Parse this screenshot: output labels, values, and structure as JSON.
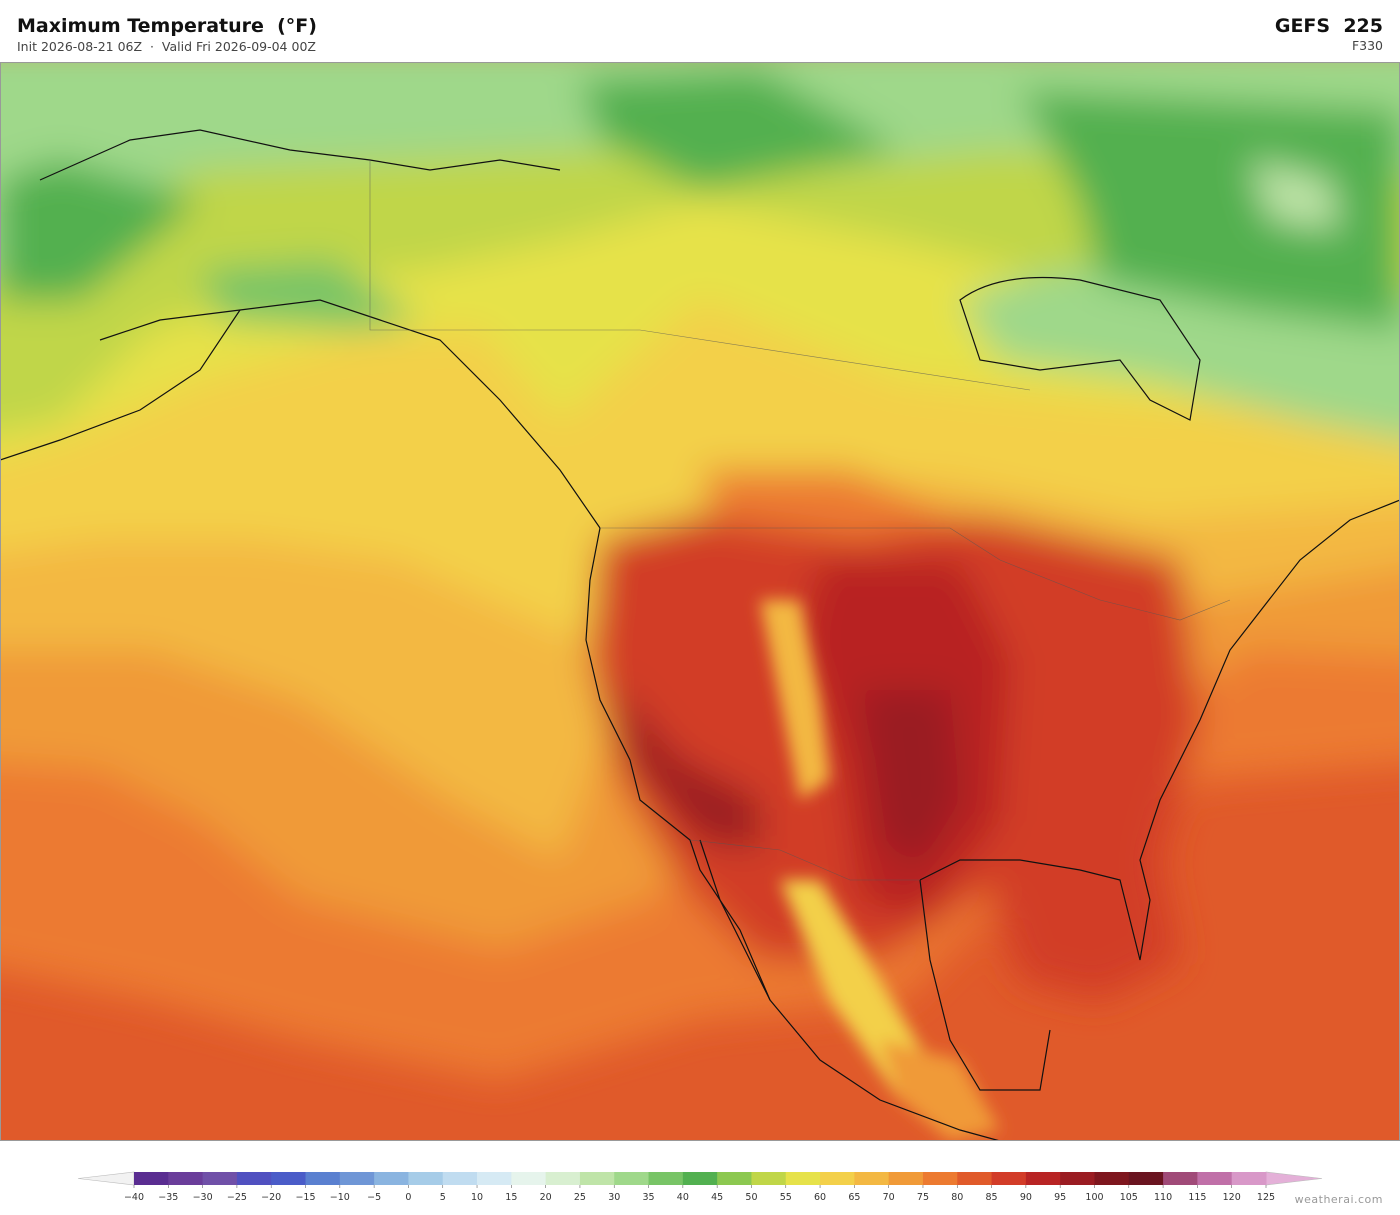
{
  "header": {
    "title": "Maximum Temperature  (°F)",
    "subtitle": "Init 2026-08-21 06Z  ·  Valid Fri 2026-09-04 00Z",
    "model": "GEFS  225",
    "forecast_hour": "F330"
  },
  "colorbar": {
    "min": -40,
    "max": 125,
    "ticks": [
      {
        "value": -40,
        "label": "−40"
      },
      {
        "value": -35,
        "label": "−35"
      },
      {
        "value": -30,
        "label": "−30"
      },
      {
        "value": -25,
        "label": "−25"
      },
      {
        "value": -20,
        "label": "−20"
      },
      {
        "value": -15,
        "label": "−15"
      },
      {
        "value": -10,
        "label": "−10"
      },
      {
        "value": -5,
        "label": "−5"
      },
      0,
      5,
      10,
      15,
      20,
      25,
      30,
      35,
      40,
      45,
      50,
      55,
      60,
      65,
      70,
      75,
      80,
      85,
      90,
      95,
      100,
      105,
      110,
      115,
      120,
      125
    ],
    "colors": [
      "#5a2d91",
      "#6a3d9a",
      "#7050a8",
      "#5050c0",
      "#4a5cc8",
      "#5a80d0",
      "#6f96d6",
      "#8ab4e0",
      "#a6cce8",
      "#c0dcf0",
      "#d6eaf4",
      "#e6f4ec",
      "#d8efd0",
      "#bfe4a8",
      "#9fd88a",
      "#78c466",
      "#52b050",
      "#8cc850",
      "#c0d648",
      "#e6e24a",
      "#f3d04a",
      "#f3b843",
      "#f09a38",
      "#ec7a30",
      "#e05a2a",
      "#d23c28",
      "#b82424",
      "#9a1c22",
      "#7e161e",
      "#6a1420",
      "#a04a78",
      "#c070a8",
      "#d898c8"
    ],
    "under_color": "#f2f2f2",
    "over_color": "#e4b0d8"
  },
  "credit": "weatherai.com"
}
